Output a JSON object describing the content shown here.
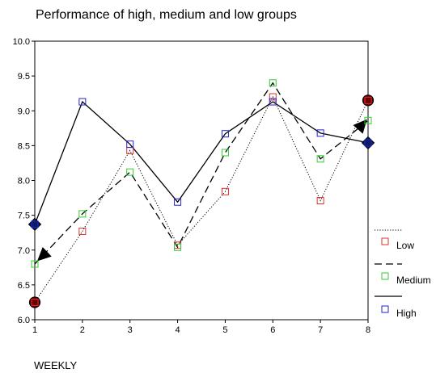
{
  "chart_data": {
    "type": "line",
    "title": "Performance of high, medium and low groups",
    "xlabel": "WEEKLY",
    "ylabel": "",
    "x": [
      1,
      2,
      3,
      4,
      5,
      6,
      7,
      8
    ],
    "xlim": [
      1,
      8
    ],
    "ylim": [
      6.0,
      10.0
    ],
    "yticks": [
      "10.0",
      "9.5",
      "9.0",
      "8.5",
      "8.0",
      "7.5",
      "7.0",
      "6.5",
      "6.0"
    ],
    "xticks": [
      "1",
      "2",
      "3",
      "4",
      "5",
      "6",
      "7",
      "8"
    ],
    "grid": false,
    "legend_position": "right",
    "series": [
      {
        "name": "Low",
        "line_style": "dotted",
        "marker_color": "#e0302a",
        "values": [
          6.25,
          7.27,
          8.43,
          7.07,
          7.84,
          9.2,
          7.71,
          9.15
        ]
      },
      {
        "name": "Medium",
        "line_style": "dashed",
        "marker_color": "#33cc33",
        "values": [
          6.8,
          7.52,
          8.12,
          7.04,
          8.4,
          9.4,
          8.31,
          8.86
        ]
      },
      {
        "name": "High",
        "line_style": "solid",
        "marker_color": "#2222cc",
        "values": [
          7.37,
          9.13,
          8.52,
          7.69,
          8.67,
          9.13,
          8.68,
          8.54
        ]
      }
    ]
  }
}
